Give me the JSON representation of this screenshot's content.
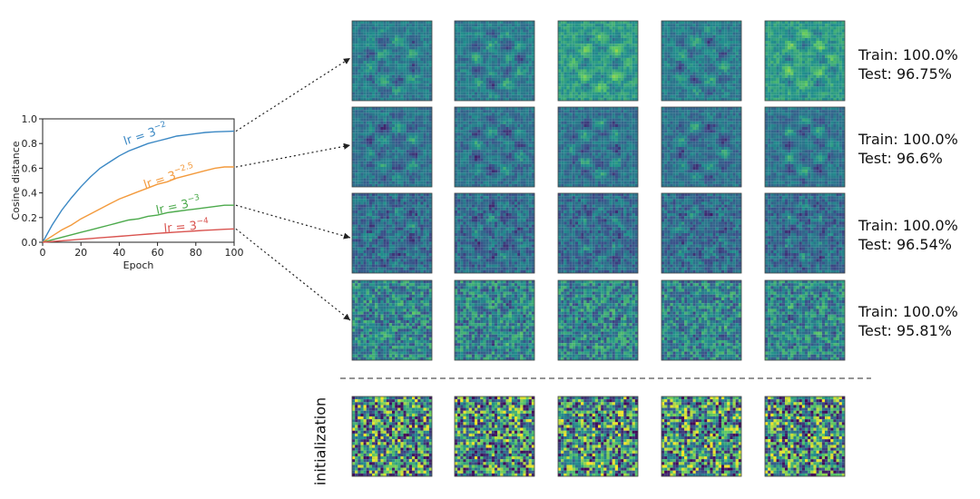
{
  "chart_data": {
    "type": "line",
    "xlabel": "Epoch",
    "ylabel": "Cosine distance",
    "xlim": [
      0,
      100
    ],
    "ylim": [
      0,
      1.0
    ],
    "xticks": [
      "0",
      "20",
      "40",
      "60",
      "80",
      "100"
    ],
    "yticks": [
      "0.0",
      "0.2",
      "0.4",
      "0.6",
      "0.8",
      "1.0"
    ],
    "x": [
      0,
      5,
      10,
      15,
      20,
      25,
      30,
      35,
      40,
      45,
      50,
      55,
      60,
      65,
      70,
      75,
      80,
      85,
      90,
      95,
      100
    ],
    "series": [
      {
        "label_base": "lr = 3",
        "label_exp": "−2",
        "color": "#3b88c4",
        "values": [
          0,
          0.14,
          0.26,
          0.36,
          0.45,
          0.53,
          0.6,
          0.65,
          0.7,
          0.74,
          0.77,
          0.8,
          0.82,
          0.84,
          0.86,
          0.87,
          0.88,
          0.89,
          0.895,
          0.898,
          0.9
        ]
      },
      {
        "label_base": "lr = 3",
        "label_exp": "−2.5",
        "color": "#f39a3c",
        "values": [
          0,
          0.05,
          0.1,
          0.14,
          0.19,
          0.23,
          0.27,
          0.31,
          0.35,
          0.38,
          0.41,
          0.44,
          0.47,
          0.49,
          0.52,
          0.54,
          0.56,
          0.58,
          0.6,
          0.61,
          0.61
        ]
      },
      {
        "label_base": "lr = 3",
        "label_exp": "−3",
        "color": "#4caa4c",
        "values": [
          0,
          0.02,
          0.04,
          0.06,
          0.08,
          0.1,
          0.12,
          0.14,
          0.16,
          0.18,
          0.19,
          0.21,
          0.22,
          0.24,
          0.25,
          0.26,
          0.27,
          0.28,
          0.29,
          0.3,
          0.3
        ]
      },
      {
        "label_base": "lr = 3",
        "label_exp": "−4",
        "color": "#d9534f",
        "values": [
          0,
          0.006,
          0.012,
          0.018,
          0.024,
          0.03,
          0.036,
          0.042,
          0.048,
          0.054,
          0.06,
          0.066,
          0.072,
          0.077,
          0.082,
          0.087,
          0.092,
          0.097,
          0.101,
          0.105,
          0.108
        ]
      }
    ]
  },
  "results": [
    {
      "train": "Train: 100.0%",
      "test": "Test: 96.75%"
    },
    {
      "train": "Train: 100.0%",
      "test": "Test: 96.6%"
    },
    {
      "train": "Train: 100.0%",
      "test": "Test: 96.54%"
    },
    {
      "train": "Train: 100.0%",
      "test": "Test: 95.81%"
    }
  ],
  "init_label": "initialization",
  "colormap": [
    "#440154",
    "#3b528b",
    "#21908d",
    "#5dc863",
    "#fde725"
  ]
}
